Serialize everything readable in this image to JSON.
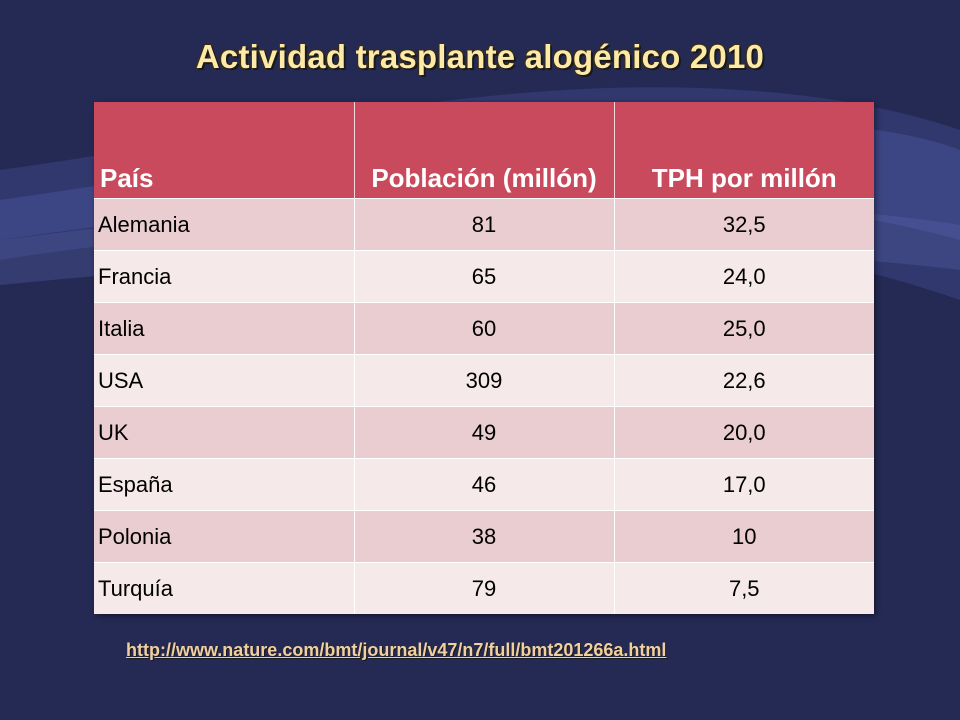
{
  "slide": {
    "title": "Actividad trasplante alogénico 2010",
    "source_link": "http://www.nature.com/bmt/journal/v47/n7/full/bmt201266a.html"
  },
  "colors": {
    "background": "#252a55",
    "title": "#fde9a8",
    "header_bg": "#ca4a5d",
    "row_odd": "#eacdd1",
    "row_even": "#f5e9ea"
  },
  "table": {
    "headers": [
      "País",
      "Población (millón)",
      "TPH por millón"
    ],
    "rows": [
      [
        "Alemania",
        "81",
        "32,5"
      ],
      [
        "Francia",
        "65",
        "24,0"
      ],
      [
        "Italia",
        "60",
        "25,0"
      ],
      [
        "USA",
        "309",
        "22,6"
      ],
      [
        "UK",
        "49",
        "20,0"
      ],
      [
        "España",
        "46",
        "17,0"
      ],
      [
        "Polonia",
        "38",
        "10"
      ],
      [
        "Turquía",
        "79",
        "7,5"
      ]
    ]
  }
}
